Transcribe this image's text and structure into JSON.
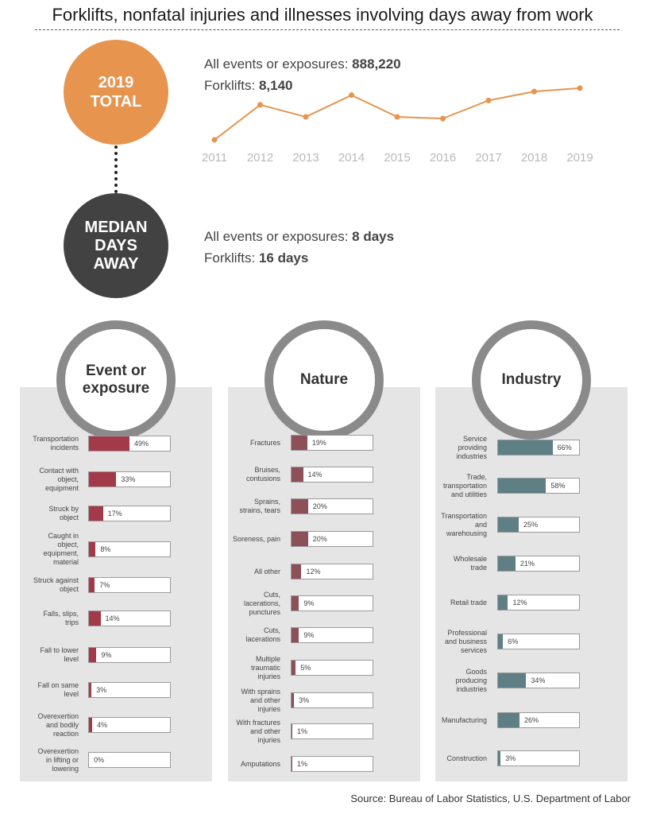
{
  "title": "Forklifts, nonfatal injuries and illnesses involving days away from work",
  "source": "Source: Bureau of Labor Statistics, U.S. Department of Labor",
  "colors": {
    "orange": "#e7944f",
    "dark": "#424242",
    "event": "#a33a4a",
    "nature": "#8c5058",
    "industry": "#5e7f84"
  },
  "total": {
    "circle": "2019\nTOTAL",
    "all_label": "All events or exposures: ",
    "all_value": "888,220",
    "forklift_label": "Forklifts: ",
    "forklift_value": "8,140"
  },
  "median": {
    "circle": "MEDIAN\nDAYS\nAWAY",
    "all_label": "All events or exposures: ",
    "all_value": "8 days",
    "forklift_label": "Forklifts: ",
    "forklift_value": "16 days"
  },
  "chart_data": [
    {
      "type": "line",
      "title": "",
      "x": [
        "2011",
        "2012",
        "2013",
        "2014",
        "2015",
        "2016",
        "2017",
        "2018",
        "2019"
      ],
      "series": [
        {
          "values": [
            6000,
            7450,
            6950,
            7850,
            6950,
            6880,
            7630,
            8000,
            8140
          ]
        }
      ],
      "ylim": [
        5800,
        8300
      ],
      "grid": false,
      "color": "#e7944f"
    },
    {
      "type": "bar",
      "title": "Event or\nexposure",
      "color": "#a33a4a",
      "categories": [
        "Transportation\nincidents",
        "Contact with\nobject,\nequipment",
        "Struck by\nobject",
        "Caught in\nobject,\nequipment,\nmaterial",
        "Struck against\nobject",
        "Falls, slips,\ntrips",
        "Fall to lower\nlevel",
        "Fall on same\nlevel",
        "Overexertion\nand bodily\nreaction",
        "Overexertion\nin lifting or\nlowering"
      ],
      "values": [
        49,
        33,
        17,
        8,
        7,
        14,
        9,
        3,
        4,
        0
      ],
      "labels": [
        "49%",
        "33%",
        "17%",
        "8%",
        "7%",
        "14%",
        "9%",
        "3%",
        "4%",
        "0%"
      ]
    },
    {
      "type": "bar",
      "title": "Nature",
      "color": "#8c5058",
      "categories": [
        "Fractures",
        "Bruises,\ncontusions",
        "Sprains,\nstrains, tears",
        "Soreness, pain",
        "All other",
        "Cuts,\nlacerations,\npunctures",
        "Cuts,\nlacerations",
        "Multiple\ntraumatic\ninjuries",
        "With sprains\nand other\ninjuries",
        "With fractures\nand other\ninjuries",
        "Amputations"
      ],
      "values": [
        19,
        14,
        20,
        20,
        12,
        9,
        9,
        5,
        3,
        1,
        1
      ],
      "labels": [
        "19%",
        "14%",
        "20%",
        "20%",
        "12%",
        "9%",
        "9%",
        "5%",
        "3%",
        "1%",
        "1%"
      ]
    },
    {
      "type": "bar",
      "title": "Industry",
      "color": "#5e7f84",
      "categories": [
        "Service\nproviding\nindustries",
        "Trade,\ntransportation\nand utilities",
        "Transportation\nand\nwarehousing",
        "Wholesale\ntrade",
        "Retail trade",
        "Professional\nand business\nservices",
        "Goods\nproducing\nindustries",
        "Manufacturing",
        "Construction"
      ],
      "values": [
        66,
        58,
        25,
        21,
        12,
        6,
        34,
        26,
        3
      ],
      "labels": [
        "66%",
        "58%",
        "25%",
        "21%",
        "12%",
        "6%",
        "34%",
        "26%",
        "3%"
      ]
    }
  ]
}
